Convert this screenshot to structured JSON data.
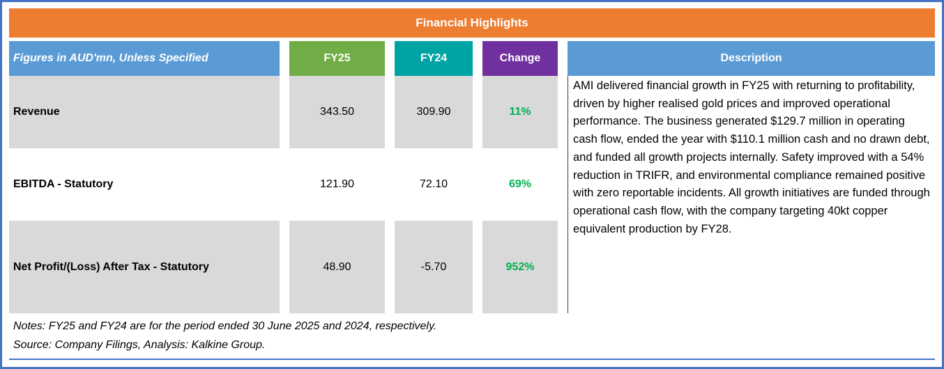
{
  "title": "Financial Highlights",
  "table": {
    "header": {
      "label": "Figures in AUD'mn, Unless Specified",
      "fy25": "FY25",
      "fy24": "FY24",
      "change": "Change",
      "description": "Description"
    },
    "rows": [
      {
        "label": "Revenue",
        "fy25": "343.50",
        "fy24": "309.90",
        "change": "11%"
      },
      {
        "label": "EBITDA - Statutory",
        "fy25": "121.90",
        "fy24": "72.10",
        "change": "69%"
      },
      {
        "label": "Net Profit/(Loss) After Tax - Statutory",
        "fy25": "48.90",
        "fy24": "-5.70",
        "change": "952%"
      }
    ],
    "description": "AMI delivered financial growth in FY25 with returning to profitability, driven by higher realised gold prices and improved operational performance. The business generated $129.7 million in operating cash flow, ended the year with $110.1 million cash and no drawn debt, and funded all growth projects internally. Safety improved with a 54% reduction in TRIFR, and environmental compliance remained positive with zero reportable incidents. All growth initiatives are funded through operational cash flow, with the company targeting 40kt copper equivalent production by FY28."
  },
  "notes": "Notes: FY25 and FY24 are for the period ended 30 June 2025 and 2024, respectively.",
  "source": "Source: Company Filings, Analysis: Kalkine Group.",
  "colors": {
    "title_bg": "#ED7D31",
    "header_blue": "#5B9BD5",
    "fy25_green": "#70AD47",
    "fy24_teal": "#00A3A3",
    "change_purple": "#7030A0",
    "row_gray": "#D9D9D9",
    "positive_green": "#00B050",
    "border_blue": "#4472C4"
  },
  "chart_data": {
    "type": "table",
    "title": "Financial Highlights",
    "columns": [
      "Figures in AUD'mn, Unless Specified",
      "FY25",
      "FY24",
      "Change"
    ],
    "rows": [
      [
        "Revenue",
        343.5,
        309.9,
        "11%"
      ],
      [
        "EBITDA - Statutory",
        121.9,
        72.1,
        "69%"
      ],
      [
        "Net Profit/(Loss) After Tax - Statutory",
        48.9,
        -5.7,
        "952%"
      ]
    ],
    "notes": "FY25 and FY24 are for the period ended 30 June 2025 and 2024, respectively.",
    "source": "Company Filings, Analysis: Kalkine Group"
  }
}
